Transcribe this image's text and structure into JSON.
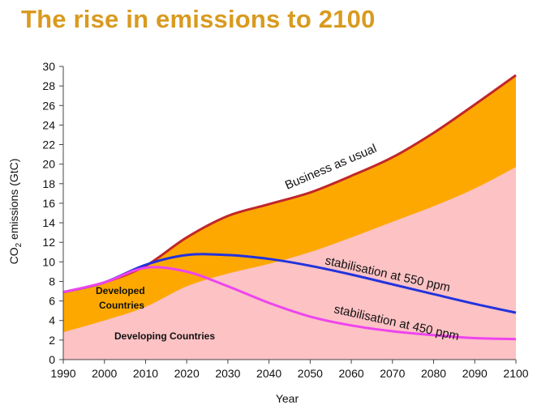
{
  "title": "The rise in emissions to 2100",
  "colors": {
    "developed_fill": "#fda800",
    "developing_fill": "#fcc2c4",
    "business_line": "#c0262a",
    "line_550": "#2233dd",
    "line_450": "#ee44ee",
    "title_color": "#d99a1f"
  },
  "chart_data": {
    "type": "area",
    "xlabel": "Year",
    "ylabel": "CO2 emissions (GtC)",
    "xlim": [
      1990,
      2100
    ],
    "ylim": [
      0,
      30
    ],
    "x_ticks": [
      1990,
      2000,
      2010,
      2020,
      2030,
      2040,
      2050,
      2060,
      2070,
      2080,
      2090,
      2100
    ],
    "y_ticks": [
      0,
      2,
      4,
      6,
      8,
      10,
      12,
      14,
      16,
      18,
      20,
      22,
      24,
      26,
      28,
      30
    ],
    "grid": false,
    "x": [
      1990,
      2000,
      2010,
      2020,
      2030,
      2040,
      2050,
      2060,
      2070,
      2080,
      2090,
      2100
    ],
    "series": [
      {
        "name": "Developing Countries",
        "kind": "area",
        "values": [
          2.8,
          4.0,
          5.4,
          7.5,
          8.8,
          9.8,
          11.0,
          12.5,
          14.1,
          15.7,
          17.5,
          19.7
        ]
      },
      {
        "name": "Developed Countries",
        "kind": "area",
        "values": [
          6.9,
          7.9,
          9.6,
          12.5,
          14.7,
          15.9,
          17.1,
          18.8,
          20.7,
          23.2,
          26.1,
          29.1
        ]
      },
      {
        "name": "Business as usual",
        "kind": "line",
        "values": [
          6.9,
          7.9,
          9.6,
          12.5,
          14.7,
          15.9,
          17.1,
          18.8,
          20.7,
          23.2,
          26.1,
          29.1
        ]
      },
      {
        "name": "stabilisation at 550 ppm",
        "kind": "line",
        "values": [
          6.9,
          7.9,
          9.7,
          10.7,
          10.7,
          10.3,
          9.6,
          8.7,
          7.7,
          6.7,
          5.7,
          4.8
        ]
      },
      {
        "name": "stabilisation at 450 ppm",
        "kind": "line",
        "values": [
          6.9,
          7.9,
          9.4,
          9.0,
          7.5,
          5.8,
          4.4,
          3.5,
          2.9,
          2.5,
          2.2,
          2.1
        ]
      }
    ],
    "labels": {
      "developed": [
        "Developed",
        "Countries"
      ],
      "developing": "Developing Countries",
      "business": "Business as usual",
      "s550": "stabilisation at 550 ppm",
      "s450": "stabilisation at 450 ppm",
      "ylabel_main": "CO",
      "ylabel_sub": "2",
      "ylabel_rest": " emissions (GtC)"
    }
  }
}
